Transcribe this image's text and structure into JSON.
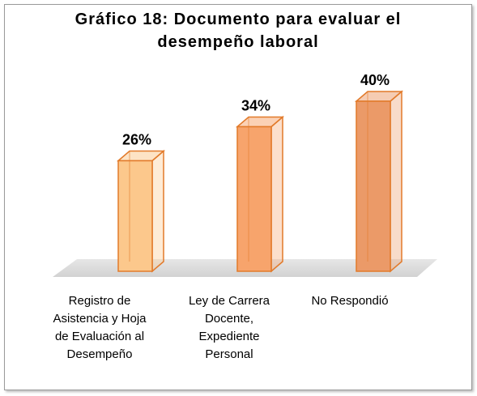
{
  "chart_data": {
    "type": "bar3d",
    "title": "Gráfico 18: Documento para evaluar el desempeño laboral",
    "categories": [
      "Registro de Asistencia y Hoja de Evaluación al Desempeño",
      "Ley de Carrera Docente, Expediente Personal",
      "No Respondió"
    ],
    "values": [
      26,
      34,
      40
    ],
    "value_labels": [
      "26%",
      "34%",
      "40%"
    ],
    "colors": [
      "#fcc88c",
      "#f7a46c",
      "#eb9a68"
    ],
    "edge_color": "#e27a2a"
  }
}
